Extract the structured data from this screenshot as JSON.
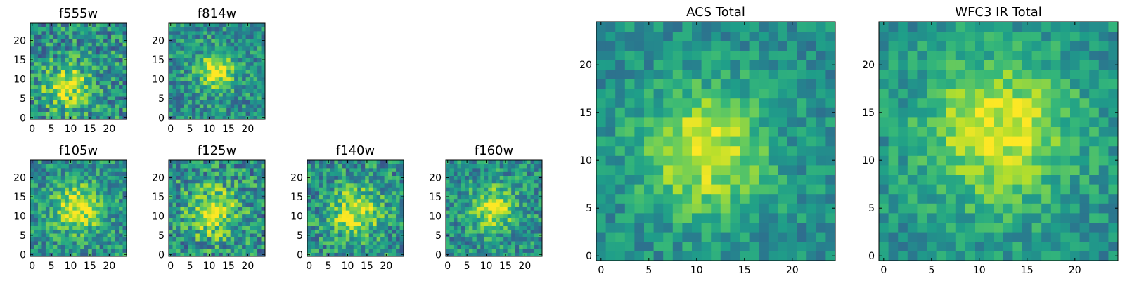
{
  "chart_data": [
    {
      "type": "heatmap",
      "title": "f555w",
      "colormap": "viridis",
      "grid": false,
      "xlim": [
        -0.5,
        24.5
      ],
      "ylim": [
        -0.5,
        24.5
      ],
      "xticks": [
        0,
        5,
        10,
        15,
        20
      ],
      "yticks": [
        0,
        5,
        10,
        15,
        20
      ],
      "xticklabels": [
        "0",
        "5",
        "10",
        "15",
        "20"
      ],
      "yticklabels": [
        "0",
        "5",
        "10",
        "15",
        "20"
      ],
      "peak": [
        9,
        8
      ],
      "sigma": 4,
      "noise": 0.55
    },
    {
      "type": "heatmap",
      "title": "f814w",
      "colormap": "viridis",
      "grid": false,
      "xlim": [
        -0.5,
        24.5
      ],
      "ylim": [
        -0.5,
        24.5
      ],
      "xticks": [
        0,
        5,
        10,
        15,
        20
      ],
      "yticks": [
        0,
        5,
        10,
        15,
        20
      ],
      "xticklabels": [
        "0",
        "5",
        "10",
        "15",
        "20"
      ],
      "yticklabels": [
        "0",
        "5",
        "10",
        "15",
        "20"
      ],
      "peak": [
        12,
        12
      ],
      "sigma": 3.5,
      "noise": 0.45
    },
    {
      "type": "heatmap",
      "title": "f105w",
      "colormap": "viridis",
      "grid": false,
      "xlim": [
        -0.5,
        24.5
      ],
      "ylim": [
        -0.5,
        24.5
      ],
      "xticks": [
        0,
        5,
        10,
        15,
        20
      ],
      "yticks": [
        0,
        5,
        10,
        15,
        20
      ],
      "xticklabels": [
        "0",
        "5",
        "10",
        "15",
        "20"
      ],
      "yticklabels": [
        "0",
        "5",
        "10",
        "15",
        "20"
      ],
      "peak": [
        12,
        12
      ],
      "sigma": 4.5,
      "noise": 0.45
    },
    {
      "type": "heatmap",
      "title": "f125w",
      "colormap": "viridis",
      "grid": false,
      "xlim": [
        -0.5,
        24.5
      ],
      "ylim": [
        -0.5,
        24.5
      ],
      "xticks": [
        0,
        5,
        10,
        15,
        20
      ],
      "yticks": [
        0,
        5,
        10,
        15,
        20
      ],
      "xticklabels": [
        "0",
        "5",
        "10",
        "15",
        "20"
      ],
      "yticklabels": [
        "0",
        "5",
        "10",
        "15",
        "20"
      ],
      "peak": [
        11,
        11
      ],
      "sigma": 4.5,
      "noise": 0.55
    },
    {
      "type": "heatmap",
      "title": "f140w",
      "colormap": "viridis",
      "grid": false,
      "xlim": [
        -0.5,
        24.5
      ],
      "ylim": [
        -0.5,
        24.5
      ],
      "xticks": [
        0,
        5,
        10,
        15,
        20
      ],
      "yticks": [
        0,
        5,
        10,
        15,
        20
      ],
      "xticklabels": [
        "0",
        "5",
        "10",
        "15",
        "20"
      ],
      "yticklabels": [
        "0",
        "5",
        "10",
        "15",
        "20"
      ],
      "peak": [
        12,
        11
      ],
      "sigma": 4.5,
      "noise": 0.5
    },
    {
      "type": "heatmap",
      "title": "f160w",
      "colormap": "viridis",
      "grid": false,
      "xlim": [
        -0.5,
        24.5
      ],
      "ylim": [
        -0.5,
        24.5
      ],
      "xticks": [
        0,
        5,
        10,
        15,
        20
      ],
      "yticks": [
        0,
        5,
        10,
        15,
        20
      ],
      "xticklabels": [
        "0",
        "5",
        "10",
        "15",
        "20"
      ],
      "yticklabels": [
        "0",
        "5",
        "10",
        "15",
        "20"
      ],
      "peak": [
        12,
        12
      ],
      "sigma": 4,
      "noise": 0.45
    },
    {
      "type": "heatmap",
      "title": "ACS Total",
      "colormap": "viridis",
      "grid": false,
      "xlim": [
        -0.5,
        24.5
      ],
      "ylim": [
        -0.5,
        24.5
      ],
      "xticks": [
        0,
        5,
        10,
        15,
        20
      ],
      "yticks": [
        0,
        5,
        10,
        15,
        20
      ],
      "xticklabels": [
        "0",
        "5",
        "10",
        "15",
        "20"
      ],
      "yticklabels": [
        "0",
        "5",
        "10",
        "15",
        "20"
      ],
      "peak": [
        11,
        11
      ],
      "sigma": 4.5,
      "noise": 0.3
    },
    {
      "type": "heatmap",
      "title": "WFC3 IR Total",
      "colormap": "viridis",
      "grid": false,
      "xlim": [
        -0.5,
        24.5
      ],
      "ylim": [
        -0.5,
        24.5
      ],
      "xticks": [
        0,
        5,
        10,
        15,
        20
      ],
      "yticks": [
        0,
        5,
        10,
        15,
        20
      ],
      "xticklabels": [
        "0",
        "5",
        "10",
        "15",
        "20"
      ],
      "yticklabels": [
        "0",
        "5",
        "10",
        "15",
        "20"
      ],
      "peak": [
        12,
        13
      ],
      "sigma": 5.5,
      "noise": 0.3
    }
  ]
}
